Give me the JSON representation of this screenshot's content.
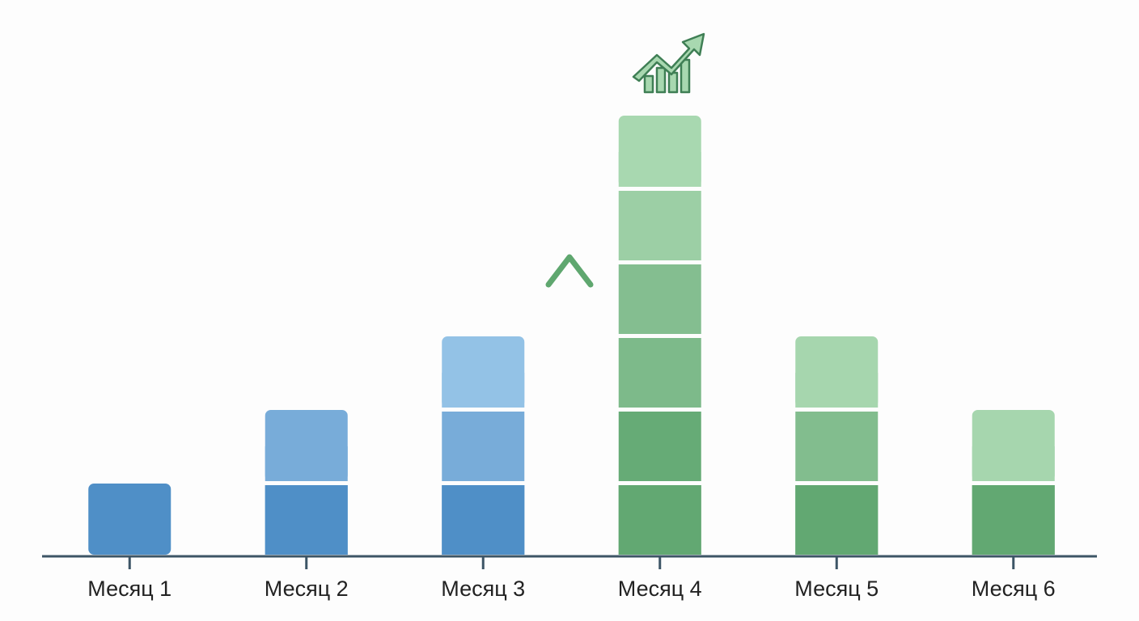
{
  "chart_data": {
    "type": "block-bar",
    "categories": [
      "Месяц 1",
      "Месяц 2",
      "Месяц 3",
      "Месяц 4",
      "Месяц 5",
      "Месяц 6"
    ],
    "values": [
      1,
      2,
      3,
      6,
      3,
      2
    ],
    "colors": [
      [
        "#4f8fc7"
      ],
      [
        "#4f8fc7",
        "#78acd9"
      ],
      [
        "#4f8fc7",
        "#78acd9",
        "#93c2e6"
      ],
      [
        "#62a872",
        "#66ab76",
        "#7dba8a",
        "#84be90",
        "#9ccfa5",
        "#a8d8b0"
      ],
      [
        "#62a872",
        "#82bd8e",
        "#a6d6ae"
      ],
      [
        "#62a872",
        "#a6d6ae"
      ]
    ]
  }
}
